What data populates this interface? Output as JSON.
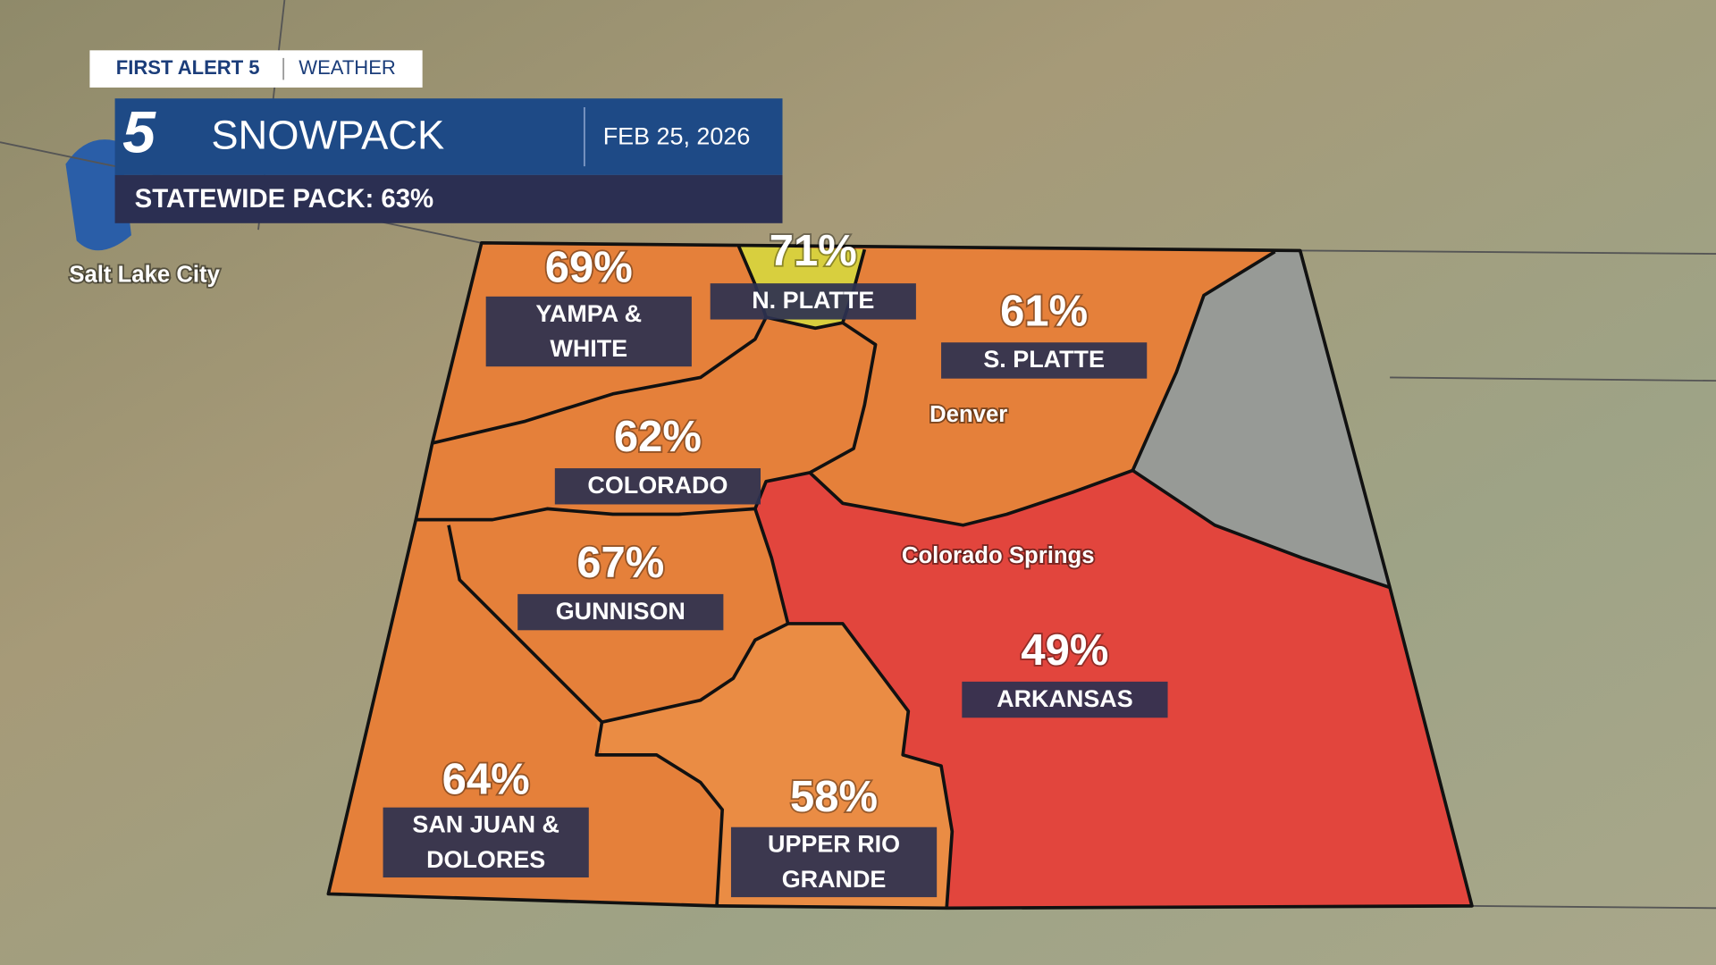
{
  "header": {
    "brand": "FIRST ALERT 5",
    "section": "WEATHER",
    "logo": "5",
    "title": "SNOWPACK",
    "date": "FEB 25, 2026",
    "statewide": "STATEWIDE PACK: 63%"
  },
  "cities": [
    "Salt Lake City",
    "Denver",
    "Colorado Springs"
  ],
  "basins": [
    {
      "pct": "69%",
      "name_lines": [
        "YAMPA &",
        "WHITE"
      ]
    },
    {
      "pct": "71%",
      "name_lines": [
        "N. PLATTE"
      ]
    },
    {
      "pct": "61%",
      "name_lines": [
        "S. PLATTE"
      ]
    },
    {
      "pct": "62%",
      "name_lines": [
        "COLORADO"
      ]
    },
    {
      "pct": "67%",
      "name_lines": [
        "GUNNISON"
      ]
    },
    {
      "pct": "49%",
      "name_lines": [
        "ARKANSAS"
      ]
    },
    {
      "pct": "64%",
      "name_lines": [
        "SAN JUAN &",
        "DOLORES"
      ]
    },
    {
      "pct": "58%",
      "name_lines": [
        "UPPER RIO",
        "GRANDE"
      ]
    }
  ]
}
